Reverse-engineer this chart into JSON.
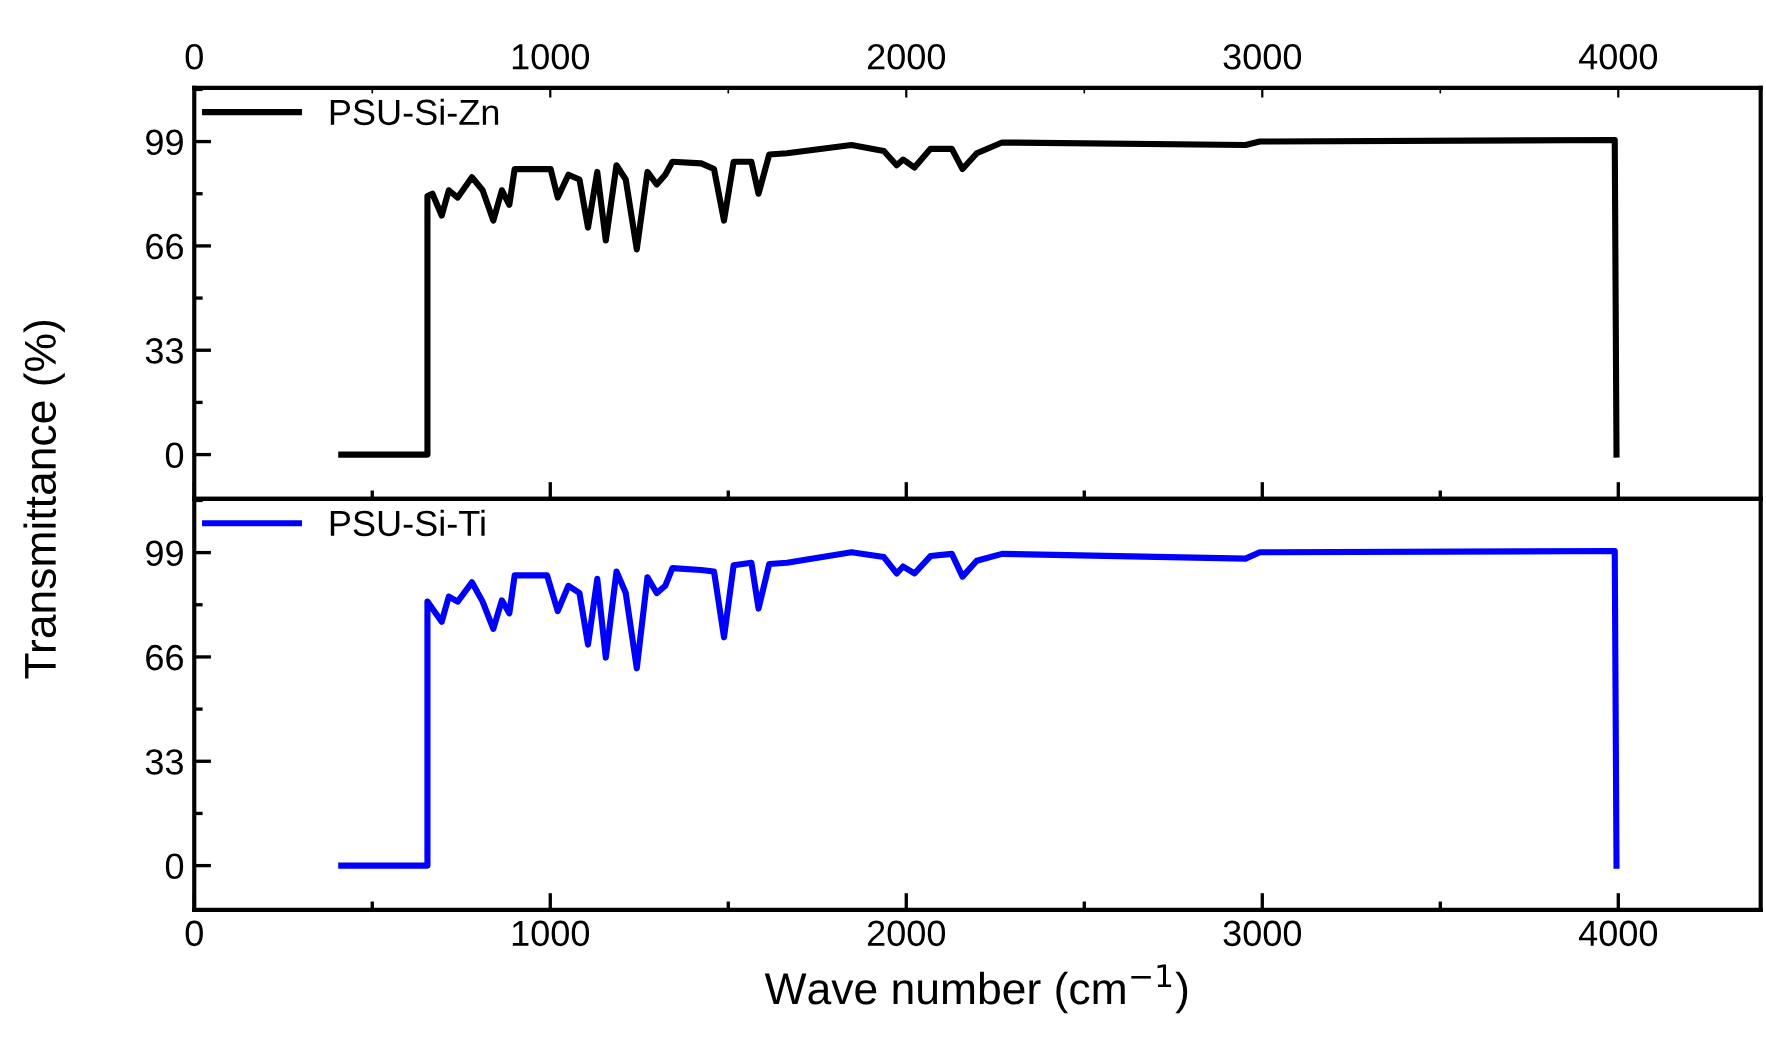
{
  "chart_data": [
    {
      "type": "line",
      "ylabel": "Transmittance (%)",
      "legend": "top left",
      "grid": false,
      "tick_labels": "y",
      "xlim": [
        0,
        4400
      ],
      "ylim": [
        -14,
        116
      ],
      "yticks": [
        0,
        33,
        66,
        99
      ],
      "x2lim": [
        0,
        4400
      ],
      "x2ticks": [
        0,
        1000,
        2000,
        3000,
        4000
      ],
      "series": [
        {
          "name": "PSU-Si-Zn",
          "color": "#000000",
          "x": [
            413,
            655,
            655,
            669,
            695,
            715,
            740,
            780,
            810,
            840,
            864,
            885,
            900,
            1001,
            1021,
            1051,
            1082,
            1106,
            1132,
            1156,
            1186,
            1212,
            1243,
            1273,
            1299,
            1323,
            1343,
            1424,
            1460,
            1488,
            1515,
            1565,
            1585,
            1615,
            1665,
            1846,
            1937,
            1973,
            1991,
            2023,
            2068,
            2128,
            2158,
            2198,
            2269,
            2953,
            2993,
            3990,
            3995
          ],
          "values": [
            0,
            0,
            81.8,
            82.5,
            75.6,
            83.6,
            81.3,
            87.7,
            83.6,
            74,
            83.6,
            79,
            90.3,
            90.3,
            81.3,
            88.5,
            87,
            71.8,
            89.4,
            67.7,
            91.5,
            87,
            64.9,
            89.4,
            85.4,
            88.5,
            92.6,
            92.1,
            90.3,
            74,
            92.6,
            92.6,
            82.5,
            94.9,
            95.3,
            97.9,
            96,
            91.5,
            93.3,
            90.8,
            96.7,
            96.7,
            90.3,
            95.3,
            98.7,
            97.9,
            99,
            99.5,
            0
          ]
        }
      ]
    },
    {
      "type": "line",
      "xlabel": "Wave number (cm$^{−1}$)",
      "legend": "top left",
      "grid": false,
      "xlim": [
        0,
        4400
      ],
      "xticks": [
        0,
        1000,
        2000,
        3000,
        4000
      ],
      "ylim": [
        -14,
        116
      ],
      "yticks": [
        0,
        33,
        66,
        99
      ],
      "series": [
        {
          "name": "PSU-Si-Ti",
          "color": "#0000ff",
          "x": [
            413,
            655,
            655,
            695,
            715,
            740,
            780,
            810,
            840,
            864,
            885,
            900,
            991,
            1021,
            1051,
            1082,
            1106,
            1132,
            1156,
            1186,
            1212,
            1243,
            1273,
            1299,
            1323,
            1343,
            1424,
            1460,
            1488,
            1515,
            1565,
            1585,
            1615,
            1665,
            1846,
            1937,
            1973,
            1991,
            2023,
            2068,
            2128,
            2158,
            2198,
            2269,
            2953,
            2993,
            3990,
            3995
          ],
          "values": [
            0,
            0,
            83.5,
            77.1,
            85.1,
            83.5,
            89.6,
            83.5,
            74.9,
            83.9,
            79.8,
            91.8,
            91.8,
            80.5,
            88.5,
            86.2,
            69.9,
            90.7,
            65.8,
            93,
            86.2,
            62.4,
            91.2,
            86.2,
            88.5,
            94.1,
            93.5,
            93,
            72.2,
            95,
            95.8,
            81.3,
            95.4,
            95.8,
            99.1,
            97.6,
            92.4,
            94.6,
            92.4,
            97.9,
            98.6,
            91.4,
            96.4,
            98.6,
            97.1,
            99.1,
            99.5,
            0
          ]
        }
      ]
    }
  ]
}
